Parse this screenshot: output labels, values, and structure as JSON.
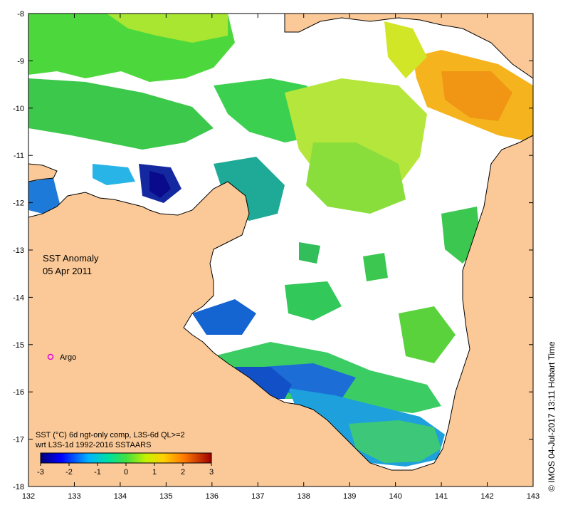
{
  "map": {
    "title_line1": "SST Anomaly",
    "title_line2": "05 Apr 2011",
    "legend_marker_label": "Argo",
    "caption_line1": "SST (°C) 6d ngt-only comp, L3S-6d QL>=2",
    "caption_line2": "wrt L3S-1d 1992-2016 SSTAARS",
    "side_text": "© IMOS 04-Jul-2017 13:11 Hobart Time",
    "x_ticks": [
      "132",
      "133",
      "134",
      "135",
      "136",
      "137",
      "138",
      "139",
      "140",
      "141",
      "142",
      "143"
    ],
    "y_ticks": [
      "-8",
      "-9",
      "-10",
      "-11",
      "-12",
      "-13",
      "-14",
      "-15",
      "-16",
      "-17",
      "-18"
    ],
    "colorbar_ticks": [
      "-3",
      "-2",
      "-1",
      "0",
      "1",
      "2",
      "3"
    ],
    "colors": {
      "land": "#fbc997",
      "ocean_nodata": "#ffffff",
      "argo": "#e000e0"
    }
  }
}
